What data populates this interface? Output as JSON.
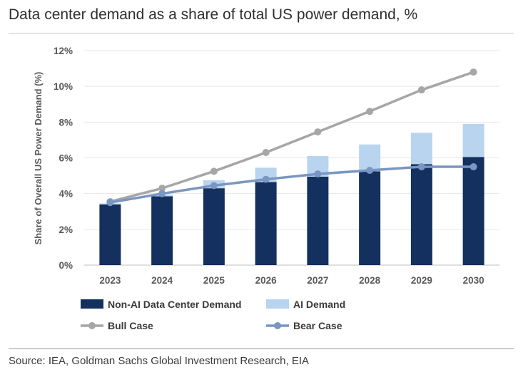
{
  "title": "Data center demand as a share of total US power demand, %",
  "source": "Source: IEA, Goldman Sachs Global Investment Research, EIA",
  "colors": {
    "non_ai": "#13305e",
    "ai": "#b9d4ee",
    "bull": "#a6a6a6",
    "bear": "#7a96c2",
    "grid": "#e6e6e6"
  },
  "chart_data": {
    "type": "bar",
    "categories": [
      "2023",
      "2024",
      "2025",
      "2026",
      "2027",
      "2028",
      "2029",
      "2030"
    ],
    "ylabel": "Share of Overall US Power Demand (%)",
    "xlabel": "",
    "ylim": [
      0,
      12
    ],
    "yticks": [
      "0%",
      "2%",
      "4%",
      "6%",
      "8%",
      "10%",
      "12%"
    ],
    "grid": true,
    "legend_position": "bottom",
    "series": [
      {
        "name": "Non-AI Data Center Demand",
        "kind": "bar-stacked",
        "values": [
          3.4,
          3.85,
          4.3,
          4.65,
          4.95,
          5.25,
          5.65,
          6.05
        ]
      },
      {
        "name": "AI Demand",
        "kind": "bar-stacked",
        "values": [
          0.05,
          0.1,
          0.45,
          0.8,
          1.15,
          1.5,
          1.75,
          1.85
        ]
      },
      {
        "name": "Bull Case",
        "kind": "line",
        "values": [
          3.55,
          4.3,
          5.25,
          6.3,
          7.45,
          8.6,
          9.8,
          10.8
        ]
      },
      {
        "name": "Bear Case",
        "kind": "line",
        "values": [
          3.5,
          4.0,
          4.45,
          4.8,
          5.1,
          5.3,
          5.5,
          5.5
        ]
      }
    ]
  }
}
